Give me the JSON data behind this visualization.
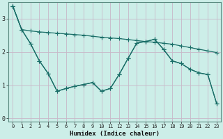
{
  "xlabel": "Humidex (Indice chaleur)",
  "bg_color": "#cceee8",
  "plot_bg_color": "#cceee8",
  "grid_color": "#c8b8c8",
  "line_color": "#1a6e68",
  "xlim_min": -0.5,
  "xlim_max": 23.5,
  "ylim_min": -0.1,
  "ylim_max": 3.5,
  "yticks": [
    0,
    1,
    2,
    3
  ],
  "xticks": [
    0,
    1,
    2,
    3,
    4,
    5,
    6,
    7,
    8,
    9,
    10,
    11,
    12,
    13,
    14,
    15,
    16,
    17,
    18,
    19,
    20,
    21,
    22,
    23
  ],
  "line1_x": [
    0,
    1,
    2,
    3,
    4,
    5,
    6,
    7,
    8,
    9,
    10,
    11,
    12,
    13,
    14,
    15,
    16,
    17,
    18,
    19,
    20,
    21,
    22,
    23
  ],
  "line1_y": [
    3.38,
    2.67,
    2.63,
    2.6,
    2.58,
    2.56,
    2.54,
    2.52,
    2.5,
    2.47,
    2.44,
    2.42,
    2.4,
    2.37,
    2.34,
    2.31,
    2.29,
    2.26,
    2.23,
    2.18,
    2.13,
    2.08,
    2.03,
    1.98
  ],
  "line2_x": [
    0,
    1,
    2,
    3,
    4,
    5,
    6,
    7,
    8,
    9,
    10,
    11,
    12,
    13,
    14,
    15,
    16,
    17,
    18,
    19,
    20,
    21,
    22,
    23
  ],
  "line2_y": [
    3.38,
    2.67,
    2.25,
    1.73,
    1.35,
    0.82,
    0.9,
    0.97,
    1.02,
    1.08,
    0.82,
    0.9,
    1.32,
    1.8,
    2.27,
    2.31,
    2.38,
    2.08,
    1.73,
    1.65,
    1.48,
    1.37,
    1.32,
    0.45
  ],
  "line3_x": [
    0,
    1,
    2,
    3,
    4,
    5,
    6,
    7,
    8,
    9,
    10,
    11,
    12,
    13,
    14,
    15,
    16,
    17,
    18,
    19,
    20,
    21,
    22,
    23
  ],
  "line3_y": [
    3.38,
    2.67,
    2.25,
    1.73,
    1.35,
    0.82,
    0.9,
    0.97,
    1.02,
    1.08,
    0.82,
    0.9,
    1.32,
    1.8,
    2.27,
    2.31,
    2.38,
    2.08,
    1.73,
    1.65,
    1.48,
    1.37,
    1.32,
    0.45
  ]
}
